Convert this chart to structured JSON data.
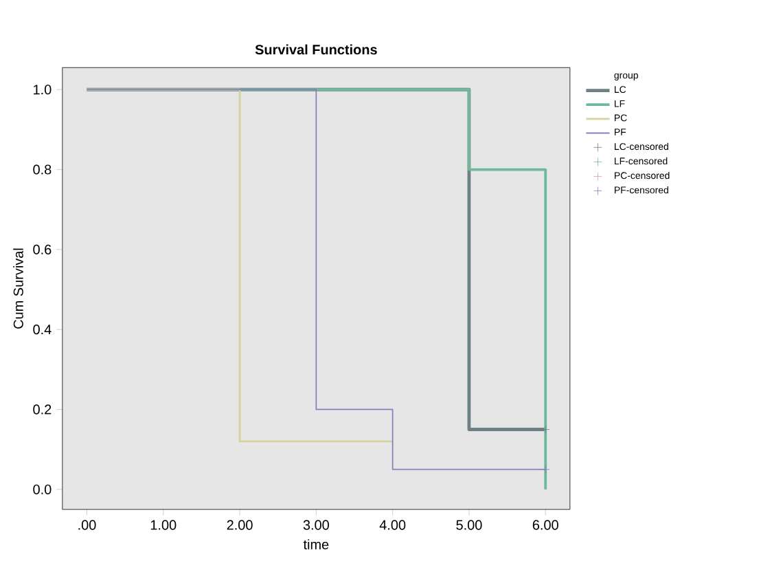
{
  "chart_data": {
    "type": "step",
    "title": "Survival Functions",
    "xlabel": "time",
    "ylabel": "Cum Survival",
    "legend_title": "group",
    "legend": "right",
    "marker": "none",
    "line_style": "solid",
    "grid": false,
    "xlim": [
      -0.32,
      6.32
    ],
    "ylim": [
      -0.05,
      1.055
    ],
    "xticks": [
      {
        "value": 0,
        "label": ".00"
      },
      {
        "value": 1,
        "label": "1.00"
      },
      {
        "value": 2,
        "label": "2.00"
      },
      {
        "value": 3,
        "label": "3.00"
      },
      {
        "value": 4,
        "label": "4.00"
      },
      {
        "value": 5,
        "label": "5.00"
      },
      {
        "value": 6,
        "label": "6.00"
      }
    ],
    "yticks": [
      {
        "value": 0,
        "label": "0.0"
      },
      {
        "value": 0.2,
        "label": "0.2"
      },
      {
        "value": 0.4,
        "label": "0.4"
      },
      {
        "value": 0.6,
        "label": "0.6"
      },
      {
        "value": 0.8,
        "label": "0.8"
      },
      {
        "value": 1,
        "label": "1.0"
      }
    ],
    "series": [
      {
        "name": "LC",
        "color": "#6f7f86",
        "x": [
          0,
          5,
          6
        ],
        "values": [
          1,
          0.15,
          0.15
        ]
      },
      {
        "name": "LF",
        "color": "#6fb89a",
        "x": [
          0,
          5,
          6
        ],
        "values": [
          1,
          0.8,
          0
        ]
      },
      {
        "name": "PC",
        "color": "#d6d39a",
        "x": [
          0,
          2,
          4
        ],
        "values": [
          1,
          0.12,
          0.12
        ]
      },
      {
        "name": "PF",
        "color": "#8a7fb8",
        "x": [
          0,
          3,
          4,
          6
        ],
        "values": [
          1,
          0.2,
          0.05,
          0.05
        ]
      },
      {
        "name": "LC-censored",
        "type": "scatter",
        "marker": "cross",
        "color": "#6f7f86",
        "x": [
          6
        ],
        "values": [
          0.15
        ]
      },
      {
        "name": "LF-censored",
        "type": "scatter",
        "marker": "cross",
        "color": "#6fb89a"
      },
      {
        "name": "PC-censored",
        "type": "scatter",
        "marker": "cross",
        "color": "#e0a0a0"
      },
      {
        "name": "PF-censored",
        "type": "scatter",
        "marker": "cross",
        "color": "#8a7fb8",
        "x": [
          6
        ],
        "values": [
          0.05
        ]
      }
    ]
  }
}
